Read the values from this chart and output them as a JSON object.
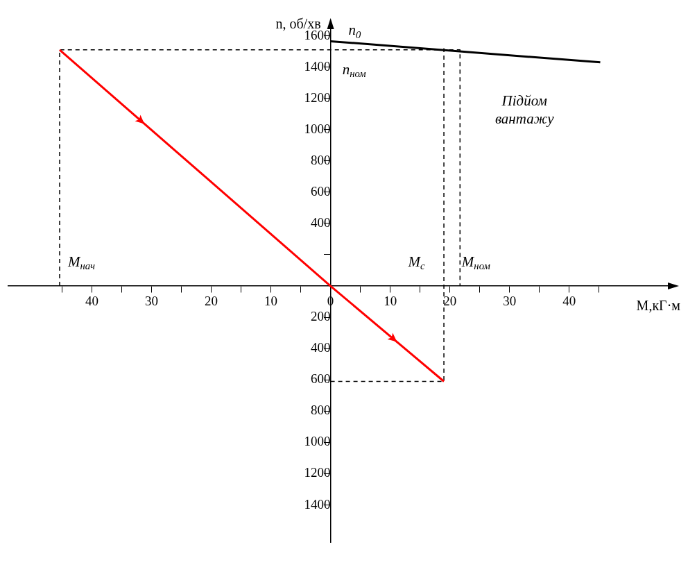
{
  "chart_data": {
    "type": "line",
    "xlabel": "M,кГ·м",
    "ylabel": "n, об/хв",
    "xlim": [
      -54,
      57
    ],
    "ylim": [
      -1640,
      1660
    ],
    "xticks": [
      {
        "value": -45,
        "label": null
      },
      {
        "value": -40,
        "label": "40"
      },
      {
        "value": -35,
        "label": null
      },
      {
        "value": -30,
        "label": "30"
      },
      {
        "value": -25,
        "label": null
      },
      {
        "value": -20,
        "label": "20"
      },
      {
        "value": -15,
        "label": null
      },
      {
        "value": -10,
        "label": "10"
      },
      {
        "value": -5,
        "label": null
      },
      0,
      {
        "value": 5,
        "label": null
      },
      10,
      {
        "value": 15,
        "label": null
      },
      20,
      {
        "value": 25,
        "label": null
      },
      30,
      {
        "value": 35,
        "label": null
      },
      40,
      {
        "value": 45,
        "label": null
      }
    ],
    "yticks": [
      {
        "value": -1400,
        "label": "1400"
      },
      {
        "value": -1200,
        "label": "1200"
      },
      {
        "value": -1000,
        "label": "1000"
      },
      {
        "value": -800,
        "label": "800"
      },
      {
        "value": -600,
        "label": "600"
      },
      {
        "value": -400,
        "label": "400"
      },
      {
        "value": -200,
        "label": "200"
      },
      {
        "value": 200,
        "label": null
      },
      400,
      600,
      800,
      1000,
      1200,
      1400,
      1600
    ],
    "grid": false,
    "legend": false,
    "marker": "none",
    "series": [
      {
        "color": "#ff0000",
        "x": [
          -45.4,
          0,
          19
        ],
        "values": [
          1510,
          0,
          -610
        ],
        "line_style": "solid"
      },
      {
        "color": "#000000",
        "x": [
          0,
          45.2
        ],
        "values": [
          1565,
          1430
        ],
        "line_style": "solid"
      },
      {
        "color": "#000000",
        "x": [
          -45.4,
          -45.4,
          21.7,
          21.7
        ],
        "values": [
          0,
          1510,
          1510,
          0
        ],
        "line_style": "dashed"
      },
      {
        "color": "#000000",
        "x": [
          0,
          19,
          19
        ],
        "values": [
          -610,
          -610,
          1520
        ],
        "line_style": "dashed"
      }
    ],
    "annotations": [
      "M$_{нач}$",
      "M$_{c}$",
      "M$_{ном}$",
      "n$_{0}$",
      "n$_{ном}$",
      "Підйом вантажу"
    ]
  }
}
